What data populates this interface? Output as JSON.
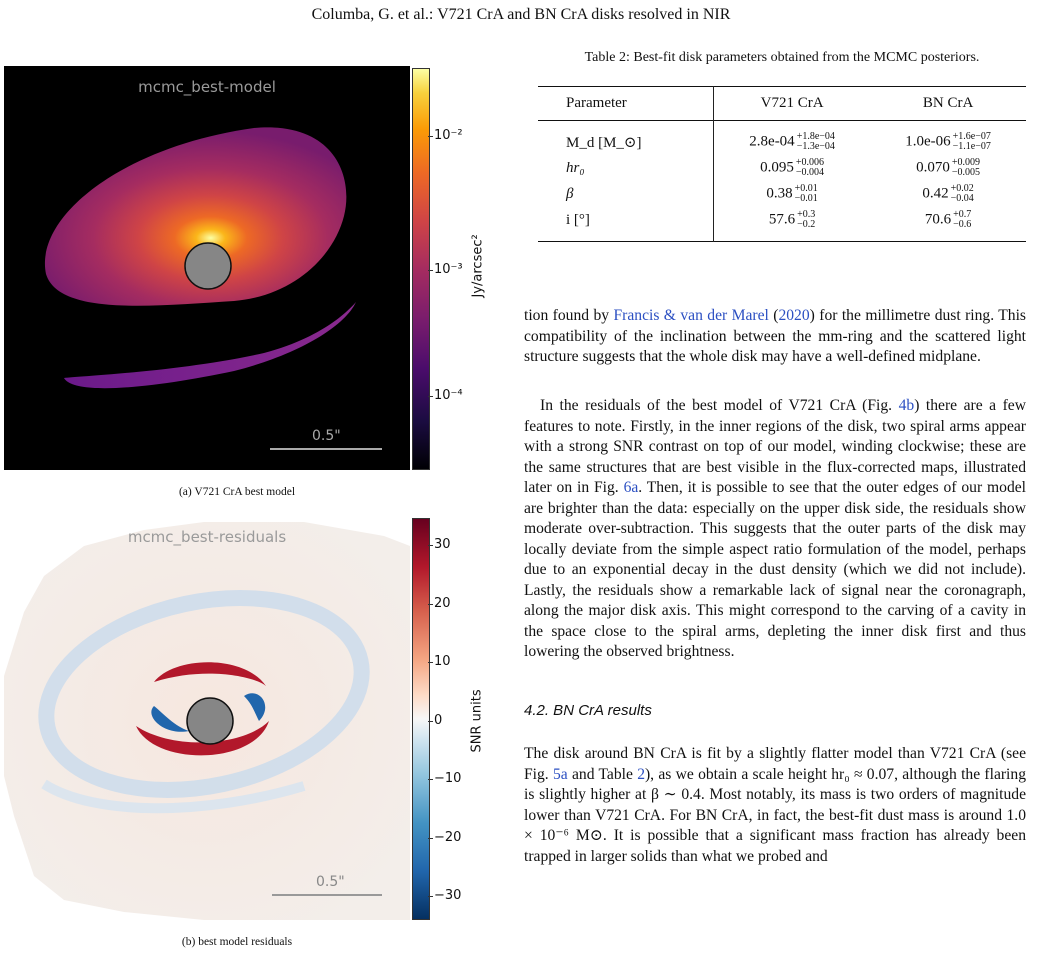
{
  "header": "Columba, G. et al.: V721 CrA and BN CrA disks resolved in NIR",
  "figure_a": {
    "title": "mcmc_best-model",
    "scale_bar": "0.5\"",
    "colorbar": {
      "label": "Jy/arcsec²",
      "scale": "log",
      "ticks": [
        "10⁻²",
        "10⁻³",
        "10⁻⁴"
      ]
    },
    "colormap": "inferno",
    "caption": "(a) V721 CrA best model"
  },
  "figure_b": {
    "title": "mcmc_best-residuals",
    "scale_bar": "0.5\"",
    "colorbar": {
      "label": "SNR units",
      "ticks": [
        "30",
        "20",
        "10",
        "0",
        "−10",
        "−20",
        "−30"
      ]
    },
    "colormap": "RdBu_r",
    "caption": "(b) best model residuals"
  },
  "table": {
    "caption": "Table 2: Best-fit disk parameters obtained from the MCMC posteriors.",
    "headers": [
      "Parameter",
      "V721 CrA",
      "BN CrA"
    ],
    "rows": [
      {
        "param": "M_d [M_⊙]",
        "v721": {
          "value": "2.8e-04",
          "plus": "+1.8e−04",
          "minus": "−1.3e−04"
        },
        "bn": {
          "value": "1.0e-06",
          "plus": "+1.6e−07",
          "minus": "−1.1e−07"
        }
      },
      {
        "param": "hr₀",
        "v721": {
          "value": "0.095",
          "plus": "+0.006",
          "minus": "−0.004"
        },
        "bn": {
          "value": "0.070",
          "plus": "+0.009",
          "minus": "−0.005"
        }
      },
      {
        "param": "β",
        "v721": {
          "value": "0.38",
          "plus": "+0.01",
          "minus": "−0.01"
        },
        "bn": {
          "value": "0.42",
          "plus": "+0.02",
          "minus": "−0.04"
        }
      },
      {
        "param": "i [°]",
        "v721": {
          "value": "57.6",
          "plus": "+0.3",
          "minus": "−0.2"
        },
        "bn": {
          "value": "70.6",
          "plus": "+0.7",
          "minus": "−0.6"
        }
      }
    ]
  },
  "paragraph1": {
    "pre": "tion found by ",
    "link1": "Francis & van der Marel",
    "mid": " (",
    "link2": "2020",
    "post": ") for the millimetre dust ring. This compatibility of the inclination between the mm-ring and the scattered light structure suggests that the whole disk may have a well-defined midplane."
  },
  "paragraph2": {
    "p1": "In the residuals of the best model of V721 CrA (Fig. ",
    "link1": "4b",
    "p2": ") there are a few features to note. Firstly, in the inner regions of the disk, two spiral arms appear with a strong SNR contrast on top of our model, winding clockwise; these are the same structures that are best visible in the flux-corrected maps, illustrated later on in Fig. ",
    "link2": "6a",
    "p3": ". Then, it is possible to see that the outer edges of our model are brighter than the data: especially on the upper disk side, the residuals show moderate over-subtraction. This suggests that the outer parts of the disk may locally deviate from the simple aspect ratio formulation of the model, perhaps due to an exponential decay in the dust density (which we did not include). Lastly, the residuals show a remarkable lack of signal near the coronagraph, along the major disk axis. This might correspond to the carving of a cavity in the space close to the spiral arms, depleting the inner disk first and thus lowering the observed brightness."
  },
  "section": "4.2. BN CrA results",
  "paragraph3": {
    "p1": "The disk around BN CrA is fit by a slightly flatter model than V721 CrA (see Fig. ",
    "link1": "5a",
    "p2": " and Table ",
    "link2": "2",
    "p3": "), as we obtain a scale height hr₀ ≈ 0.07, although the flaring is slightly higher at β ∼ 0.4. Most notably, its mass is two orders of magnitude lower than V721 CrA. For BN CrA, in fact, the best-fit dust mass is around 1.0 × 10⁻⁶ M⊙. It is possible that a significant mass fraction has already been trapped in larger solids than what we probed and"
  }
}
